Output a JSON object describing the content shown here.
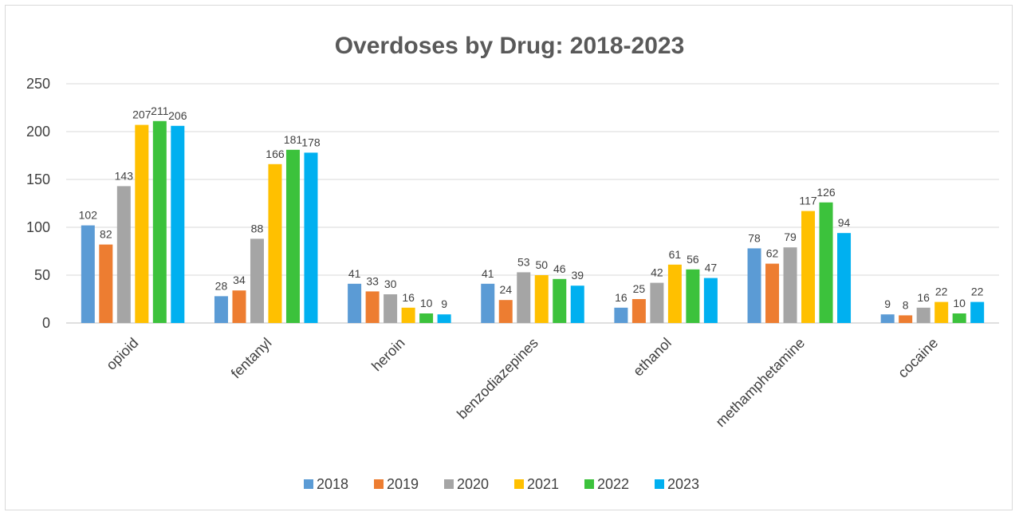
{
  "chart_data": {
    "type": "bar",
    "title": "Overdoses by Drug: 2018-2023",
    "xlabel": "",
    "ylabel": "",
    "ylim": [
      0,
      250
    ],
    "yticks": [
      0,
      50,
      100,
      150,
      200,
      250
    ],
    "grid": true,
    "legend_position": "bottom",
    "categories": [
      "opioid",
      "fentanyl",
      "heroin",
      "benzodiazepines",
      "ethanol",
      "methamphetamine",
      "cocaine"
    ],
    "series": [
      {
        "name": "2018",
        "color": "#5b9bd5",
        "values": [
          102,
          28,
          41,
          41,
          16,
          78,
          9
        ]
      },
      {
        "name": "2019",
        "color": "#ed7d31",
        "values": [
          82,
          34,
          33,
          24,
          25,
          62,
          8
        ]
      },
      {
        "name": "2020",
        "color": "#a5a5a5",
        "values": [
          143,
          88,
          30,
          53,
          42,
          79,
          16
        ]
      },
      {
        "name": "2021",
        "color": "#ffc000",
        "values": [
          207,
          166,
          16,
          50,
          61,
          117,
          22
        ]
      },
      {
        "name": "2022",
        "color": "#3cc23c",
        "values": [
          211,
          181,
          10,
          46,
          56,
          126,
          10
        ]
      },
      {
        "name": "2023",
        "color": "#00b0f0",
        "values": [
          206,
          178,
          9,
          39,
          47,
          94,
          22
        ]
      }
    ]
  }
}
